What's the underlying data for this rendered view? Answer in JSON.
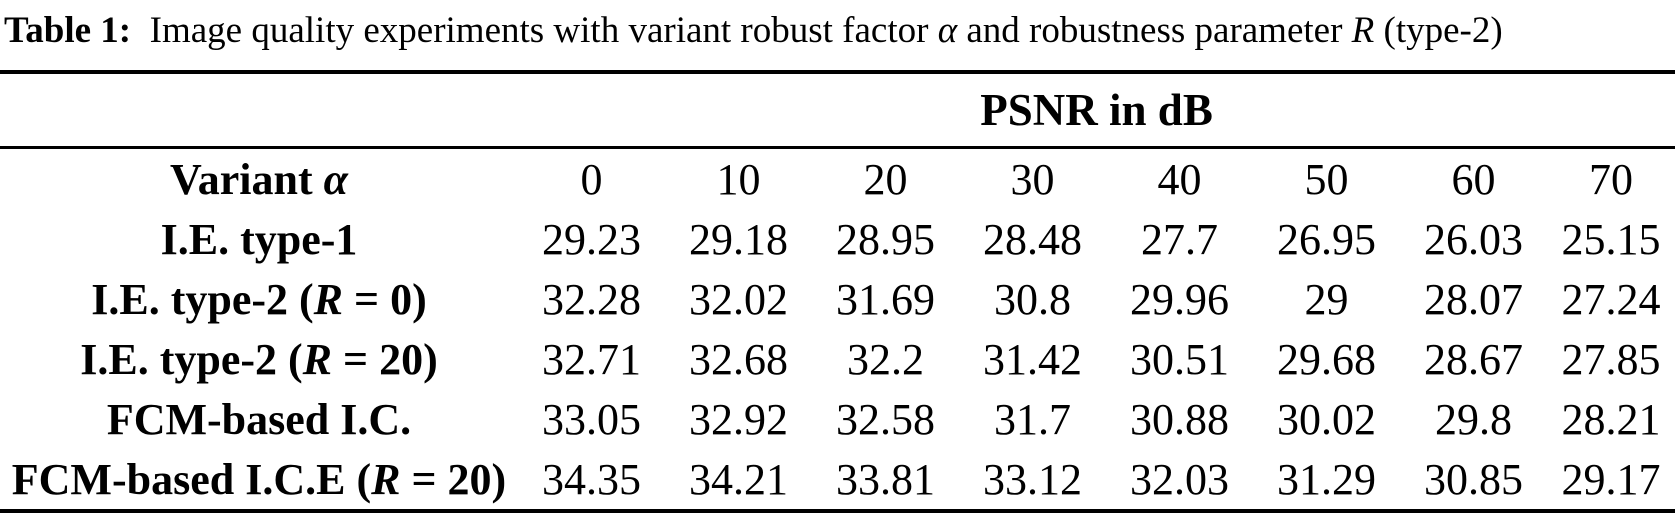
{
  "caption": {
    "parts": [
      {
        "t": "Table 1:",
        "b": true
      },
      {
        "t": "  Image quality experiments with variant robust factor "
      },
      {
        "t": "α",
        "i": true
      },
      {
        "t": " and robustness parameter "
      },
      {
        "t": "R",
        "i": true
      },
      {
        "t": " (type-2)"
      }
    ]
  },
  "chart_data": {
    "type": "table",
    "group_header": "PSNR in dB",
    "row_header": "Variant α",
    "row_header_parts": [
      {
        "t": "Variant ",
        "b": true
      },
      {
        "t": "α",
        "b": true,
        "i": true
      }
    ],
    "columns": [
      "0",
      "10",
      "20",
      "30",
      "40",
      "50",
      "60",
      "70"
    ],
    "rows": [
      {
        "label": "I.E. type-1",
        "label_parts": [
          {
            "t": "I.E. type-1",
            "b": true
          }
        ],
        "values": [
          "29.23",
          "29.18",
          "28.95",
          "28.48",
          "27.7",
          "26.95",
          "26.03",
          "25.15"
        ]
      },
      {
        "label": "I.E. type-2 (R = 0)",
        "label_parts": [
          {
            "t": "I.E. type-2 (",
            "b": true
          },
          {
            "t": "R",
            "b": true,
            "i": true
          },
          {
            "t": " = 0)",
            "b": true
          }
        ],
        "values": [
          "32.28",
          "32.02",
          "31.69",
          "30.8",
          "29.96",
          "29",
          "28.07",
          "27.24"
        ]
      },
      {
        "label": "I.E. type-2 (R = 20)",
        "label_parts": [
          {
            "t": "I.E. type-2 (",
            "b": true
          },
          {
            "t": "R",
            "b": true,
            "i": true
          },
          {
            "t": " = 20)",
            "b": true
          }
        ],
        "values": [
          "32.71",
          "32.68",
          "32.2",
          "31.42",
          "30.51",
          "29.68",
          "28.67",
          "27.85"
        ]
      },
      {
        "label": "FCM-based I.C.",
        "label_parts": [
          {
            "t": "FCM-based I.C.",
            "b": true
          }
        ],
        "values": [
          "33.05",
          "32.92",
          "32.58",
          "31.7",
          "30.88",
          "30.02",
          "29.8",
          "28.21"
        ]
      },
      {
        "label": "FCM-based I.C.E (R = 20)",
        "label_parts": [
          {
            "t": "FCM-based I.C.E (",
            "b": true
          },
          {
            "t": "R",
            "b": true,
            "i": true
          },
          {
            "t": " = 20)",
            "b": true
          }
        ],
        "values": [
          "34.35",
          "34.21",
          "33.81",
          "33.12",
          "32.03",
          "31.29",
          "30.85",
          "29.17"
        ]
      }
    ]
  }
}
